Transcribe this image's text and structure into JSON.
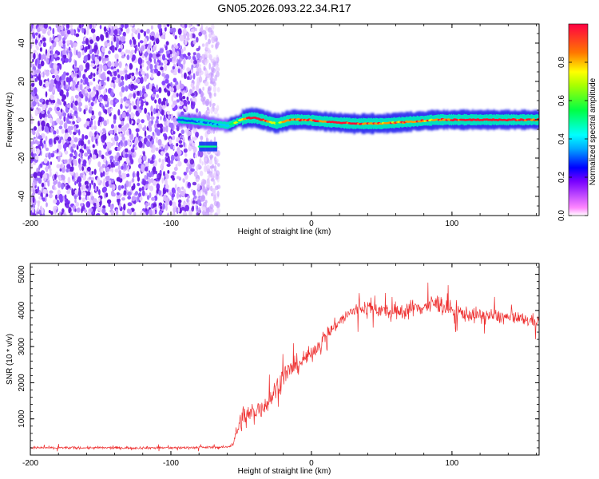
{
  "title": "GN05.2026.093.22.34.R17",
  "chart_data": [
    {
      "type": "heatmap",
      "xlabel": "Height of straight line (km)",
      "ylabel": "Frequency (Hz)",
      "xlim": [
        -200,
        162
      ],
      "ylim": [
        -50,
        50
      ],
      "x_ticks": [
        -200,
        -100,
        0,
        100
      ],
      "y_ticks": [
        -40,
        -20,
        0,
        20,
        40
      ],
      "noise_region": {
        "x_start": -200,
        "x_end": -66,
        "y_range": [
          -50,
          50
        ]
      },
      "signal_line": {
        "x": [
          -95,
          -80,
          -70,
          -60,
          -50,
          -45,
          -40,
          -30,
          -25,
          -15,
          -5,
          10,
          30,
          50,
          70,
          90,
          110,
          130,
          150,
          162
        ],
        "freq": [
          0,
          -1,
          -2,
          -3,
          0,
          1,
          1,
          -1,
          -2,
          0,
          0,
          -1,
          -2,
          -2,
          -1,
          0,
          0,
          0,
          0,
          0
        ],
        "amplitude": [
          0.3,
          0.4,
          0.4,
          0.45,
          0.7,
          0.85,
          0.9,
          0.8,
          0.6,
          0.85,
          0.9,
          0.85,
          0.9,
          0.8,
          0.85,
          0.8,
          0.95,
          0.95,
          0.9,
          0.85
        ]
      },
      "side_blob": {
        "x": [
          -80,
          -68
        ],
        "freq": -14
      },
      "colorbar": {
        "label": "Normalized spectral amplitude",
        "ticks": [
          0.0,
          0.2,
          0.4,
          0.6,
          0.8
        ],
        "tick_labels": [
          "0.0",
          "0.2",
          "0.4",
          "0.6",
          "0.8"
        ],
        "range": [
          0,
          1
        ],
        "colors": [
          "#ffffff",
          "#ff00ff",
          "#0000ff",
          "#00ffff",
          "#00ff00",
          "#ffff00",
          "#ff0000"
        ]
      }
    },
    {
      "type": "line",
      "xlabel": "Height of straight line (km)",
      "ylabel": "SNR (10 * v/v)",
      "xlim": [
        -200,
        162
      ],
      "ylim": [
        0,
        5300
      ],
      "x_ticks": [
        -200,
        -100,
        0,
        100
      ],
      "y_ticks": [
        1000,
        2000,
        3000,
        4000,
        5000
      ],
      "color": "#ee3030",
      "series": [
        {
          "name": "SNR",
          "x": [
            -200,
            -150,
            -100,
            -60,
            -56,
            -50,
            -40,
            -30,
            -20,
            -10,
            0,
            10,
            20,
            30,
            40,
            50,
            60,
            70,
            80,
            90,
            100,
            110,
            120,
            130,
            140,
            150,
            162
          ],
          "y": [
            200,
            200,
            200,
            220,
            300,
            1000,
            1200,
            1500,
            2200,
            2500,
            2800,
            3300,
            3700,
            4000,
            4100,
            4000,
            3900,
            4050,
            4100,
            4200,
            4000,
            3900,
            3850,
            3850,
            3800,
            3750,
            3700
          ],
          "noise": [
            60,
            60,
            60,
            60,
            100,
            600,
            500,
            500,
            500,
            450,
            350,
            350,
            300,
            350,
            350,
            350,
            400,
            400,
            400,
            450,
            400,
            350,
            350,
            350,
            300,
            300,
            300
          ]
        }
      ]
    }
  ]
}
